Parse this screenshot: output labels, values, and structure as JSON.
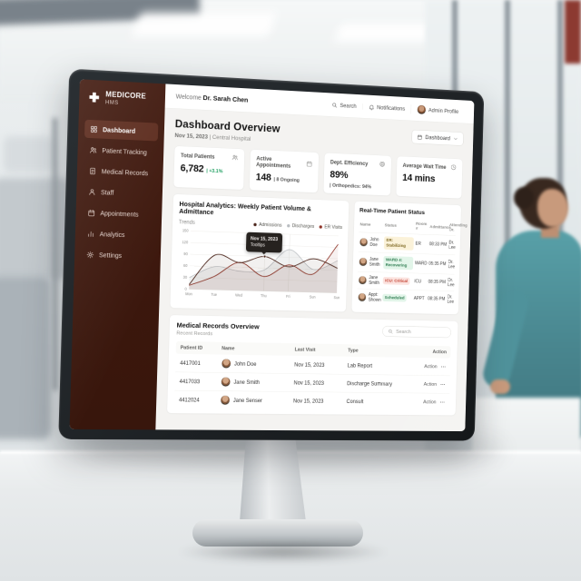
{
  "theme": {
    "sidebar_bg": "#3b190e",
    "sidebar_active_bg": "#5c2b1d",
    "positive_green": "#1d9e5f",
    "critical_red": "#c13a2a",
    "warn_amber": "#7d661f"
  },
  "brand": {
    "name": "MEDICORE",
    "sub": "HMS"
  },
  "sidebar": {
    "items": [
      {
        "label": "Dashboard",
        "icon": "grid-icon",
        "active": true
      },
      {
        "label": "Patient Tracking",
        "icon": "users-icon",
        "active": false
      },
      {
        "label": "Medical Records",
        "icon": "document-icon",
        "active": false
      },
      {
        "label": "Staff",
        "icon": "user-icon",
        "active": false
      },
      {
        "label": "Appointments",
        "icon": "calendar-icon",
        "active": false
      },
      {
        "label": "Analytics",
        "icon": "bar-chart-icon",
        "active": false
      },
      {
        "label": "Settings",
        "icon": "gear-icon",
        "active": false
      }
    ]
  },
  "topbar": {
    "welcome_prefix": "Welcome",
    "user_name": "Dr. Sarah Chen",
    "search_label": "Search",
    "notifications_label": "Notifications",
    "profile_label": "Admin Profile"
  },
  "page": {
    "title": "Dashboard Overview",
    "date": "Nov 15, 2023",
    "separator": "|",
    "location": "Central Hospital",
    "view_dropdown_label": "Dashboard"
  },
  "stats": [
    {
      "label": "Total Patients",
      "value": "6,782",
      "sub": "| +3.1%",
      "icon": "users-icon"
    },
    {
      "label": "Active Appointments",
      "value": "148",
      "sub": "| 8 Ongoing",
      "icon": "calendar-icon"
    },
    {
      "label": "Dept. Efficiency",
      "value": "89%",
      "sub": "| Orthopedics: 94%",
      "icon": "target-icon"
    },
    {
      "label": "Average Wait Time",
      "value": "14 mins",
      "sub": "",
      "icon": "clock-icon"
    }
  ],
  "chart_panel": {
    "title": "Hospital Analytics: Weekly Patient Volume & Admittance",
    "subtitle": "Trends",
    "tooltip": {
      "line1": "Nov 15, 2023",
      "line2": "Tooltips"
    }
  },
  "chart_data": {
    "type": "line",
    "title": "Hospital Analytics: Weekly Patient Volume & Admittance",
    "categories": [
      "Mon",
      "Tue",
      "Wed",
      "Thu",
      "Fri",
      "Sun",
      "Sun"
    ],
    "series": [
      {
        "name": "Admissions",
        "color": "#4a241a",
        "values": [
          12,
          90,
          72,
          90,
          65,
          88,
          65
        ]
      },
      {
        "name": "Discharges",
        "color": "#b9bdc1",
        "values": [
          30,
          60,
          50,
          55,
          110,
          60,
          85
        ]
      },
      {
        "name": "ER Visits",
        "color": "#8e3327",
        "values": [
          10,
          35,
          73,
          38,
          70,
          48,
          128
        ]
      }
    ],
    "ylim": [
      0,
      150
    ],
    "yticks": [
      0,
      30,
      60,
      90,
      120,
      150
    ],
    "grid": true,
    "legend_position": "top-right",
    "vertical_gridlines": [
      "Thu",
      "Fri"
    ],
    "highlight": {
      "series": "Admissions",
      "category": "Thu",
      "value": 90
    }
  },
  "patient_status": {
    "title": "Real-Time Patient Status",
    "columns": [
      "Name",
      "Status",
      "Room #",
      "Admittance",
      "Attending Dr."
    ],
    "rows": [
      {
        "name": "John Doe",
        "status": "ER: Stabilizing",
        "status_style": "warn",
        "room": "ER",
        "admittance": "08:33 PM",
        "doctor": "Dr. Lee"
      },
      {
        "name": "Jane Smith",
        "status": "WARD 4: Recovering",
        "status_style": "ok",
        "room": "WARD",
        "admittance": "05:35 PM",
        "doctor": "Dr. Lee"
      },
      {
        "name": "Jane Smith",
        "status": "ICU: Critical",
        "status_style": "critical",
        "room": "ICU",
        "admittance": "08:35 PM",
        "doctor": "Dr. Lee"
      },
      {
        "name": "Appt: Shown",
        "status": "Scheduled",
        "status_style": "ok",
        "room": "APPT",
        "admittance": "08:35 PM",
        "doctor": "Dr. Lee"
      }
    ]
  },
  "records": {
    "title": "Medical Records Overview",
    "subtitle": "Recent Records",
    "search_placeholder": "Search",
    "columns": [
      "Patient ID",
      "Name",
      "Last Visit",
      "Type",
      "Action"
    ],
    "action_label": "Action",
    "rows": [
      {
        "id": "4417001",
        "name": "John Doe",
        "last_visit": "Nov 15, 2023",
        "type": "Lab Report"
      },
      {
        "id": "4417033",
        "name": "Jane Smith",
        "last_visit": "Nov 15, 2023",
        "type": "Discharge Summary"
      },
      {
        "id": "4412024",
        "name": "Jane Senser",
        "last_visit": "Nov 15, 2023",
        "type": "Consult"
      }
    ]
  }
}
